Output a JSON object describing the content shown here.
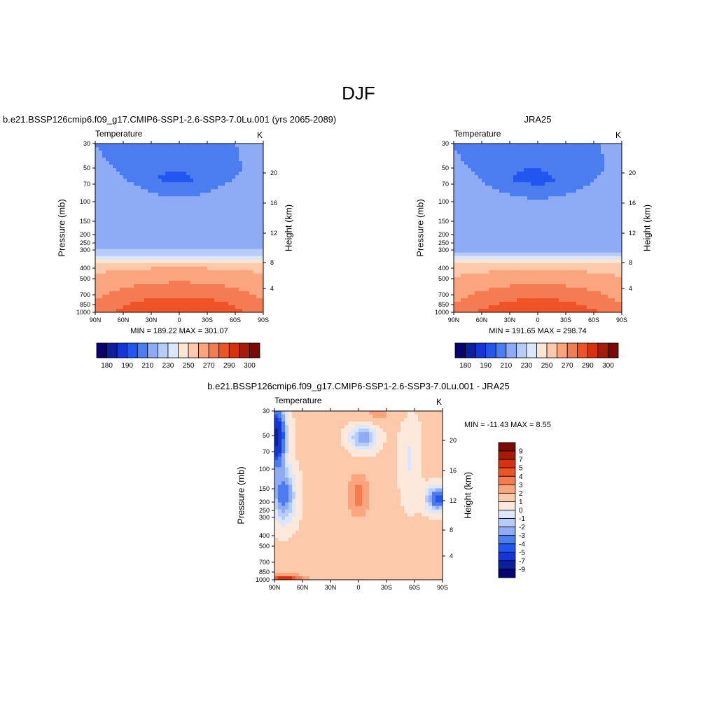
{
  "page_title": "DJF",
  "colors": {
    "t_scale": [
      "#08046f",
      "#0d1ea0",
      "#1436d6",
      "#2356f0",
      "#4b7df0",
      "#8eacf6",
      "#b8ccf8",
      "#dce7fb",
      "#fbe6d3",
      "#fccaaa",
      "#faa57d",
      "#f57c52",
      "#ee5427",
      "#d63210",
      "#a91b06",
      "#7a0a02"
    ],
    "d_scale": [
      "#08046f",
      "#0d1ea0",
      "#1436d6",
      "#2356f0",
      "#4b7df0",
      "#8eacf6",
      "#b8ccf8",
      "#dce7fb",
      "#fde9dc",
      "#fccaaa",
      "#faa57d",
      "#f57c52",
      "#ee5427",
      "#d63210",
      "#a91b06",
      "#7a0a02"
    ]
  },
  "panels": {
    "model": {
      "title": "b.e21.BSSP126cmip6.f09_g17.CMIP6-SSP1-2.6-SSP3-7.0Lu.001 (yrs 2065-2089)",
      "var_label": "Temperature",
      "unit": "K",
      "ylabel": "Pressure (mb)",
      "ylabel_right": "Height (km)",
      "minmax": "MIN = 189.22  MAX = 301.07"
    },
    "obs": {
      "title": "JRA25",
      "var_label": "Temperature",
      "unit": "K",
      "ylabel": "Pressure (mb)",
      "ylabel_right": "Height (km)",
      "minmax": "MIN = 191.65  MAX = 298.74"
    },
    "diff": {
      "title": "b.e21.BSSP126cmip6.f09_g17.CMIP6-SSP1-2.6-SSP3-7.0Lu.001 - JRA25",
      "var_label": "Temperature",
      "unit": "K",
      "ylabel": "Pressure (mb)",
      "ylabel_right": "Height (km)",
      "minmax": "MIN = -11.43  MAX =   8.55"
    }
  },
  "chart_data": [
    {
      "type": "heatmap",
      "name": "model",
      "x_ticks": [
        "90N",
        "60N",
        "30N",
        "0",
        "30S",
        "60S",
        "90S"
      ],
      "y_ticks": [
        "30",
        "50",
        "70",
        "100",
        "150",
        "200",
        "250",
        "300",
        "400",
        "500",
        "700",
        "850",
        "1000"
      ],
      "y_ticks_right": [
        "20",
        "16",
        "12",
        "8",
        "4"
      ],
      "colorbar_labels": [
        "180",
        "190",
        "210",
        "230",
        "250",
        "270",
        "290",
        "300"
      ],
      "colorbar_levels": [
        180,
        190,
        200,
        210,
        220,
        230,
        240,
        250,
        260,
        270,
        280,
        290,
        300
      ],
      "min": 189.22,
      "max": 301.07
    },
    {
      "type": "heatmap",
      "name": "obs",
      "x_ticks": [
        "90N",
        "60N",
        "30N",
        "0",
        "30S",
        "60S",
        "90S"
      ],
      "y_ticks": [
        "30",
        "50",
        "70",
        "100",
        "150",
        "200",
        "250",
        "300",
        "400",
        "500",
        "700",
        "850",
        "1000"
      ],
      "y_ticks_right": [
        "20",
        "16",
        "12",
        "8",
        "4"
      ],
      "colorbar_labels": [
        "180",
        "190",
        "210",
        "230",
        "250",
        "270",
        "290",
        "300"
      ],
      "colorbar_levels": [
        180,
        190,
        200,
        210,
        220,
        230,
        240,
        250,
        260,
        270,
        280,
        290,
        300
      ],
      "min": 191.65,
      "max": 298.74
    },
    {
      "type": "heatmap",
      "name": "diff",
      "x_ticks": [
        "90N",
        "60N",
        "30N",
        "0",
        "30S",
        "60S",
        "90S"
      ],
      "y_ticks": [
        "30",
        "50",
        "70",
        "100",
        "150",
        "200",
        "250",
        "300",
        "400",
        "500",
        "700",
        "850",
        "1000"
      ],
      "y_ticks_right": [
        "20",
        "16",
        "12",
        "8",
        "4"
      ],
      "colorbar_labels": [
        "9",
        "7",
        "5",
        "4",
        "3",
        "2",
        "1",
        "0",
        "-1",
        "-2",
        "-3",
        "-4",
        "-5",
        "-7",
        "-9"
      ],
      "colorbar_levels": [
        -9,
        -7,
        -5,
        -4,
        -3,
        -2,
        -1,
        0,
        1,
        2,
        3,
        4,
        5,
        7,
        9
      ],
      "min": -11.43,
      "max": 8.55
    }
  ]
}
